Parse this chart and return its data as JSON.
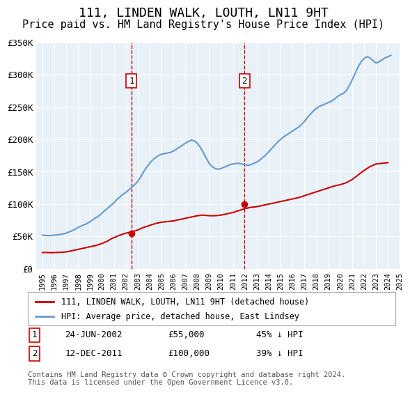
{
  "title": "111, LINDEN WALK, LOUTH, LN11 9HT",
  "subtitle": "Price paid vs. HM Land Registry's House Price Index (HPI)",
  "title_fontsize": 13,
  "subtitle_fontsize": 11,
  "background_color": "#ffffff",
  "plot_bg_color": "#e8f0f8",
  "grid_color": "#ffffff",
  "ylim": [
    0,
    350000
  ],
  "yticks": [
    0,
    50000,
    100000,
    150000,
    200000,
    250000,
    300000,
    350000
  ],
  "ytick_labels": [
    "£0",
    "£50K",
    "£100K",
    "£150K",
    "£200K",
    "£250K",
    "£300K",
    "£350K"
  ],
  "xlabel": "",
  "ylabel": "",
  "legend_label_red": "111, LINDEN WALK, LOUTH, LN11 9HT (detached house)",
  "legend_label_blue": "HPI: Average price, detached house, East Lindsey",
  "sale1_date": "24-JUN-2002",
  "sale1_price": 55000,
  "sale1_pct": "45% ↓ HPI",
  "sale1_label": "1",
  "sale2_date": "12-DEC-2011",
  "sale2_price": 100000,
  "sale2_pct": "39% ↓ HPI",
  "sale2_label": "2",
  "footnote": "Contains HM Land Registry data © Crown copyright and database right 2024.\nThis data is licensed under the Open Government Licence v3.0.",
  "red_color": "#cc0000",
  "blue_color": "#6699cc",
  "vline_color": "#cc0000",
  "marker_color": "#cc0000",
  "hpi_years": [
    1995,
    1995.25,
    1995.5,
    1995.75,
    1996,
    1996.25,
    1996.5,
    1996.75,
    1997,
    1997.25,
    1997.5,
    1997.75,
    1998,
    1998.25,
    1998.5,
    1998.75,
    1999,
    1999.25,
    1999.5,
    1999.75,
    2000,
    2000.25,
    2000.5,
    2000.75,
    2001,
    2001.25,
    2001.5,
    2001.75,
    2002,
    2002.25,
    2002.5,
    2002.75,
    2003,
    2003.25,
    2003.5,
    2003.75,
    2004,
    2004.25,
    2004.5,
    2004.75,
    2005,
    2005.25,
    2005.5,
    2005.75,
    2006,
    2006.25,
    2006.5,
    2006.75,
    2007,
    2007.25,
    2007.5,
    2007.75,
    2008,
    2008.25,
    2008.5,
    2008.75,
    2009,
    2009.25,
    2009.5,
    2009.75,
    2010,
    2010.25,
    2010.5,
    2010.75,
    2011,
    2011.25,
    2011.5,
    2011.75,
    2012,
    2012.25,
    2012.5,
    2012.75,
    2013,
    2013.25,
    2013.5,
    2013.75,
    2014,
    2014.25,
    2014.5,
    2014.75,
    2015,
    2015.25,
    2015.5,
    2015.75,
    2016,
    2016.25,
    2016.5,
    2016.75,
    2017,
    2017.25,
    2017.5,
    2017.75,
    2018,
    2018.25,
    2018.5,
    2018.75,
    2019,
    2019.25,
    2019.5,
    2019.75,
    2020,
    2020.25,
    2020.5,
    2020.75,
    2021,
    2021.25,
    2021.5,
    2021.75,
    2022,
    2022.25,
    2022.5,
    2022.75,
    2023,
    2023.25,
    2023.5,
    2023.75,
    2024,
    2024.25
  ],
  "hpi_values": [
    52000,
    51500,
    51000,
    51500,
    52000,
    52500,
    53000,
    54000,
    55000,
    57000,
    59000,
    61000,
    64000,
    66000,
    68000,
    70000,
    73000,
    76000,
    79000,
    82000,
    86000,
    90000,
    94000,
    98000,
    102000,
    107000,
    111000,
    115000,
    118000,
    122000,
    126000,
    130000,
    135000,
    142000,
    150000,
    157000,
    163000,
    168000,
    172000,
    175000,
    177000,
    178000,
    179000,
    180000,
    182000,
    185000,
    188000,
    191000,
    194000,
    197000,
    199000,
    198000,
    194000,
    188000,
    180000,
    171000,
    163000,
    158000,
    155000,
    154000,
    155000,
    157000,
    159000,
    161000,
    162000,
    163000,
    163000,
    162000,
    161000,
    160000,
    161000,
    163000,
    165000,
    168000,
    172000,
    176000,
    181000,
    186000,
    191000,
    196000,
    200000,
    204000,
    207000,
    210000,
    213000,
    216000,
    219000,
    223000,
    228000,
    234000,
    239000,
    244000,
    248000,
    251000,
    253000,
    255000,
    257000,
    259000,
    262000,
    266000,
    269000,
    271000,
    275000,
    283000,
    292000,
    302000,
    312000,
    320000,
    325000,
    328000,
    326000,
    322000,
    318000,
    320000,
    323000,
    326000,
    328000,
    330000
  ],
  "red_years": [
    1995,
    1995.25,
    1995.5,
    1995.75,
    1996,
    1996.25,
    1996.5,
    1996.75,
    1997,
    1997.25,
    1997.5,
    1997.75,
    1998,
    1998.25,
    1998.5,
    1998.75,
    1999,
    1999.25,
    1999.5,
    1999.75,
    2000,
    2000.25,
    2000.5,
    2000.75,
    2001,
    2001.25,
    2001.5,
    2001.75,
    2002,
    2002.5,
    2003,
    2003.5,
    2004,
    2004.5,
    2005,
    2005.5,
    2006,
    2006.5,
    2007,
    2007.5,
    2008,
    2008.5,
    2009,
    2009.5,
    2010,
    2010.5,
    2011,
    2011.5,
    2012,
    2012.5,
    2013,
    2013.5,
    2014,
    2014.5,
    2015,
    2015.5,
    2016,
    2016.5,
    2017,
    2017.5,
    2018,
    2018.5,
    2019,
    2019.5,
    2020,
    2020.5,
    2021,
    2021.5,
    2022,
    2022.5,
    2023,
    2023.5,
    2024
  ],
  "red_values": [
    25000,
    25200,
    25000,
    24800,
    25000,
    25200,
    25400,
    25600,
    26000,
    27000,
    28000,
    29000,
    30000,
    31000,
    32000,
    33000,
    34000,
    35000,
    36000,
    37500,
    39000,
    41000,
    43000,
    46000,
    48000,
    50000,
    52000,
    53500,
    55000,
    57000,
    60000,
    64000,
    67000,
    70000,
    72000,
    73000,
    74000,
    76000,
    78000,
    80000,
    82000,
    83000,
    82000,
    82000,
    83000,
    85000,
    87000,
    90000,
    93000,
    95000,
    96000,
    98000,
    100000,
    102000,
    104000,
    106000,
    108000,
    110000,
    113000,
    116000,
    119000,
    122000,
    125000,
    128000,
    130000,
    133000,
    138000,
    145000,
    152000,
    158000,
    162000,
    163000,
    164000
  ],
  "sale1_x": 2002.48,
  "sale2_x": 2011.95,
  "xlim_left": 1994.5,
  "xlim_right": 2025.0
}
